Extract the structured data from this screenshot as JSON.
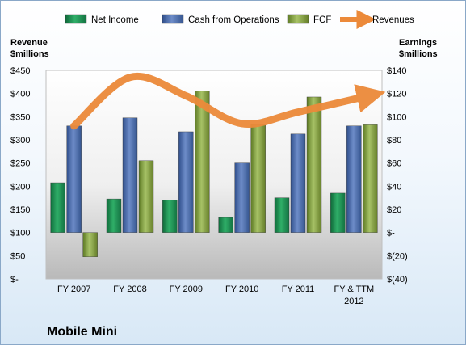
{
  "chart_data": {
    "type": "bar",
    "title": "Mobile Mini",
    "left_axis_label": [
      "Revenue",
      "$millions"
    ],
    "right_axis_label": [
      "Earnings",
      "$millions"
    ],
    "categories": [
      "FY 2007",
      "FY 2008",
      "FY 2009",
      "FY 2010",
      "FY 2011",
      "FY & TTM 2012"
    ],
    "category_labels": [
      [
        "FY 2007"
      ],
      [
        "FY 2008"
      ],
      [
        "FY 2009"
      ],
      [
        "FY 2010"
      ],
      [
        "FY 2011"
      ],
      [
        "FY & TTM",
        "2012"
      ]
    ],
    "left_ticks": [
      "$-",
      "$50",
      "$100",
      "$150",
      "$200",
      "$250",
      "$300",
      "$350",
      "$400",
      "$450"
    ],
    "left_ylim": [
      0,
      450
    ],
    "right_ticks": [
      "$(40)",
      "$(20)",
      "$-",
      "$20",
      "$40",
      "$60",
      "$80",
      "$100",
      "$120",
      "$140"
    ],
    "right_ylim": [
      -40,
      140
    ],
    "series": [
      {
        "name": "Net Income",
        "axis": "right",
        "color": "#1f8a52",
        "values": [
          43,
          29,
          28,
          13,
          30,
          34
        ]
      },
      {
        "name": "Cash from Operations",
        "axis": "right",
        "color": "#4f6fb0",
        "values": [
          92,
          99,
          87,
          60,
          85,
          92
        ]
      },
      {
        "name": "FCF",
        "axis": "right",
        "color": "#7f9e3c",
        "values": [
          -21,
          62,
          122,
          93,
          117,
          93
        ]
      },
      {
        "name": "Revenues",
        "axis": "left",
        "color": "#ec8a3a",
        "type": "line",
        "values": [
          330,
          435,
          395,
          335,
          360,
          395
        ]
      }
    ],
    "legend_position": "top",
    "grid": false
  }
}
